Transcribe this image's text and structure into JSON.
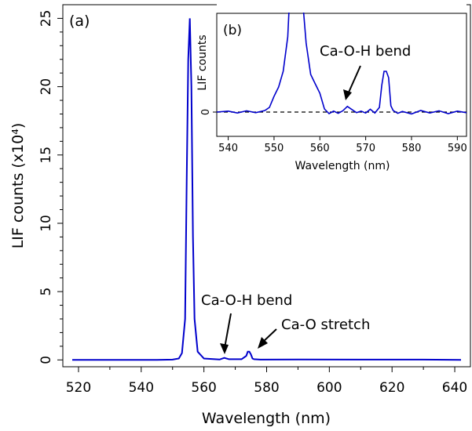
{
  "chart_data": [
    {
      "panel": "(a)",
      "type": "line",
      "xlabel": "Wavelength (nm)",
      "ylabel": "LIF counts (x10⁴)",
      "xlim": [
        515,
        645
      ],
      "ylim": [
        -0.5,
        26
      ],
      "xticks": [
        520,
        540,
        560,
        580,
        600,
        620,
        640
      ],
      "yticks": [
        0,
        5,
        10,
        15,
        20,
        25
      ],
      "color": "#0000cc",
      "grid": false,
      "series": [
        {
          "name": "",
          "x": [
            518,
            530,
            545,
            550,
            552,
            553,
            554,
            554.5,
            555,
            555.5,
            556,
            556.5,
            557,
            558,
            560,
            565,
            566.5,
            568,
            572,
            573.5,
            574,
            574.5,
            575,
            575.5,
            576,
            578,
            590,
            610,
            630,
            642
          ],
          "y": [
            0,
            0,
            0,
            0.02,
            0.1,
            0.5,
            3,
            13,
            22,
            25,
            20,
            9,
            3,
            0.6,
            0.1,
            0.03,
            0.15,
            0.05,
            0.05,
            0.3,
            0.6,
            0.6,
            0.4,
            0.1,
            0.05,
            0.02,
            0.03,
            0.02,
            0.02,
            0
          ]
        }
      ],
      "annotations": [
        {
          "text": "Ca-O-H bend",
          "target_x": 566,
          "target_y": 0.2
        },
        {
          "text": "Ca-O stretch",
          "target_x": 575.5,
          "target_y": 0.3
        }
      ]
    },
    {
      "panel": "(b)",
      "type": "line",
      "inset": true,
      "xlabel": "Wavelength (nm)",
      "ylabel": "LIF counts",
      "xlim": [
        537.5,
        592
      ],
      "xticks": [
        540,
        550,
        560,
        570,
        580,
        590
      ],
      "yticks": [
        0
      ],
      "baseline": 0,
      "color": "#0000cc",
      "series": [
        {
          "name": "",
          "x": [
            537.5,
            540,
            542,
            544,
            546,
            548,
            549,
            550,
            551,
            552,
            553,
            553.5,
            554,
            555,
            556,
            557,
            558,
            559,
            560,
            561,
            562,
            563,
            564,
            565,
            566,
            567,
            568,
            569,
            570,
            571,
            572,
            573,
            573.5,
            574,
            574.5,
            575,
            575.5,
            576,
            577,
            578,
            580,
            582,
            584,
            586,
            588,
            590,
            592
          ],
          "y": [
            0,
            0.3,
            -0.3,
            0.4,
            -0.2,
            0.5,
            1.5,
            5,
            8,
            13,
            24,
            40,
            40,
            40,
            40,
            22,
            12,
            9,
            6,
            1,
            -0.5,
            0.3,
            -0.4,
            0.4,
            1.8,
            0.8,
            -0.2,
            0.3,
            -0.3,
            0.9,
            -0.3,
            1.5,
            8.5,
            13,
            13,
            11,
            2,
            0.5,
            -0.4,
            0.2,
            -0.6,
            0.5,
            -0.3,
            0.4,
            -0.5,
            0.3,
            -0.2
          ]
        }
      ],
      "annotations": [
        {
          "text": "Ca-O-H bend",
          "target_x": 566,
          "target_y": 1.5
        }
      ]
    }
  ]
}
